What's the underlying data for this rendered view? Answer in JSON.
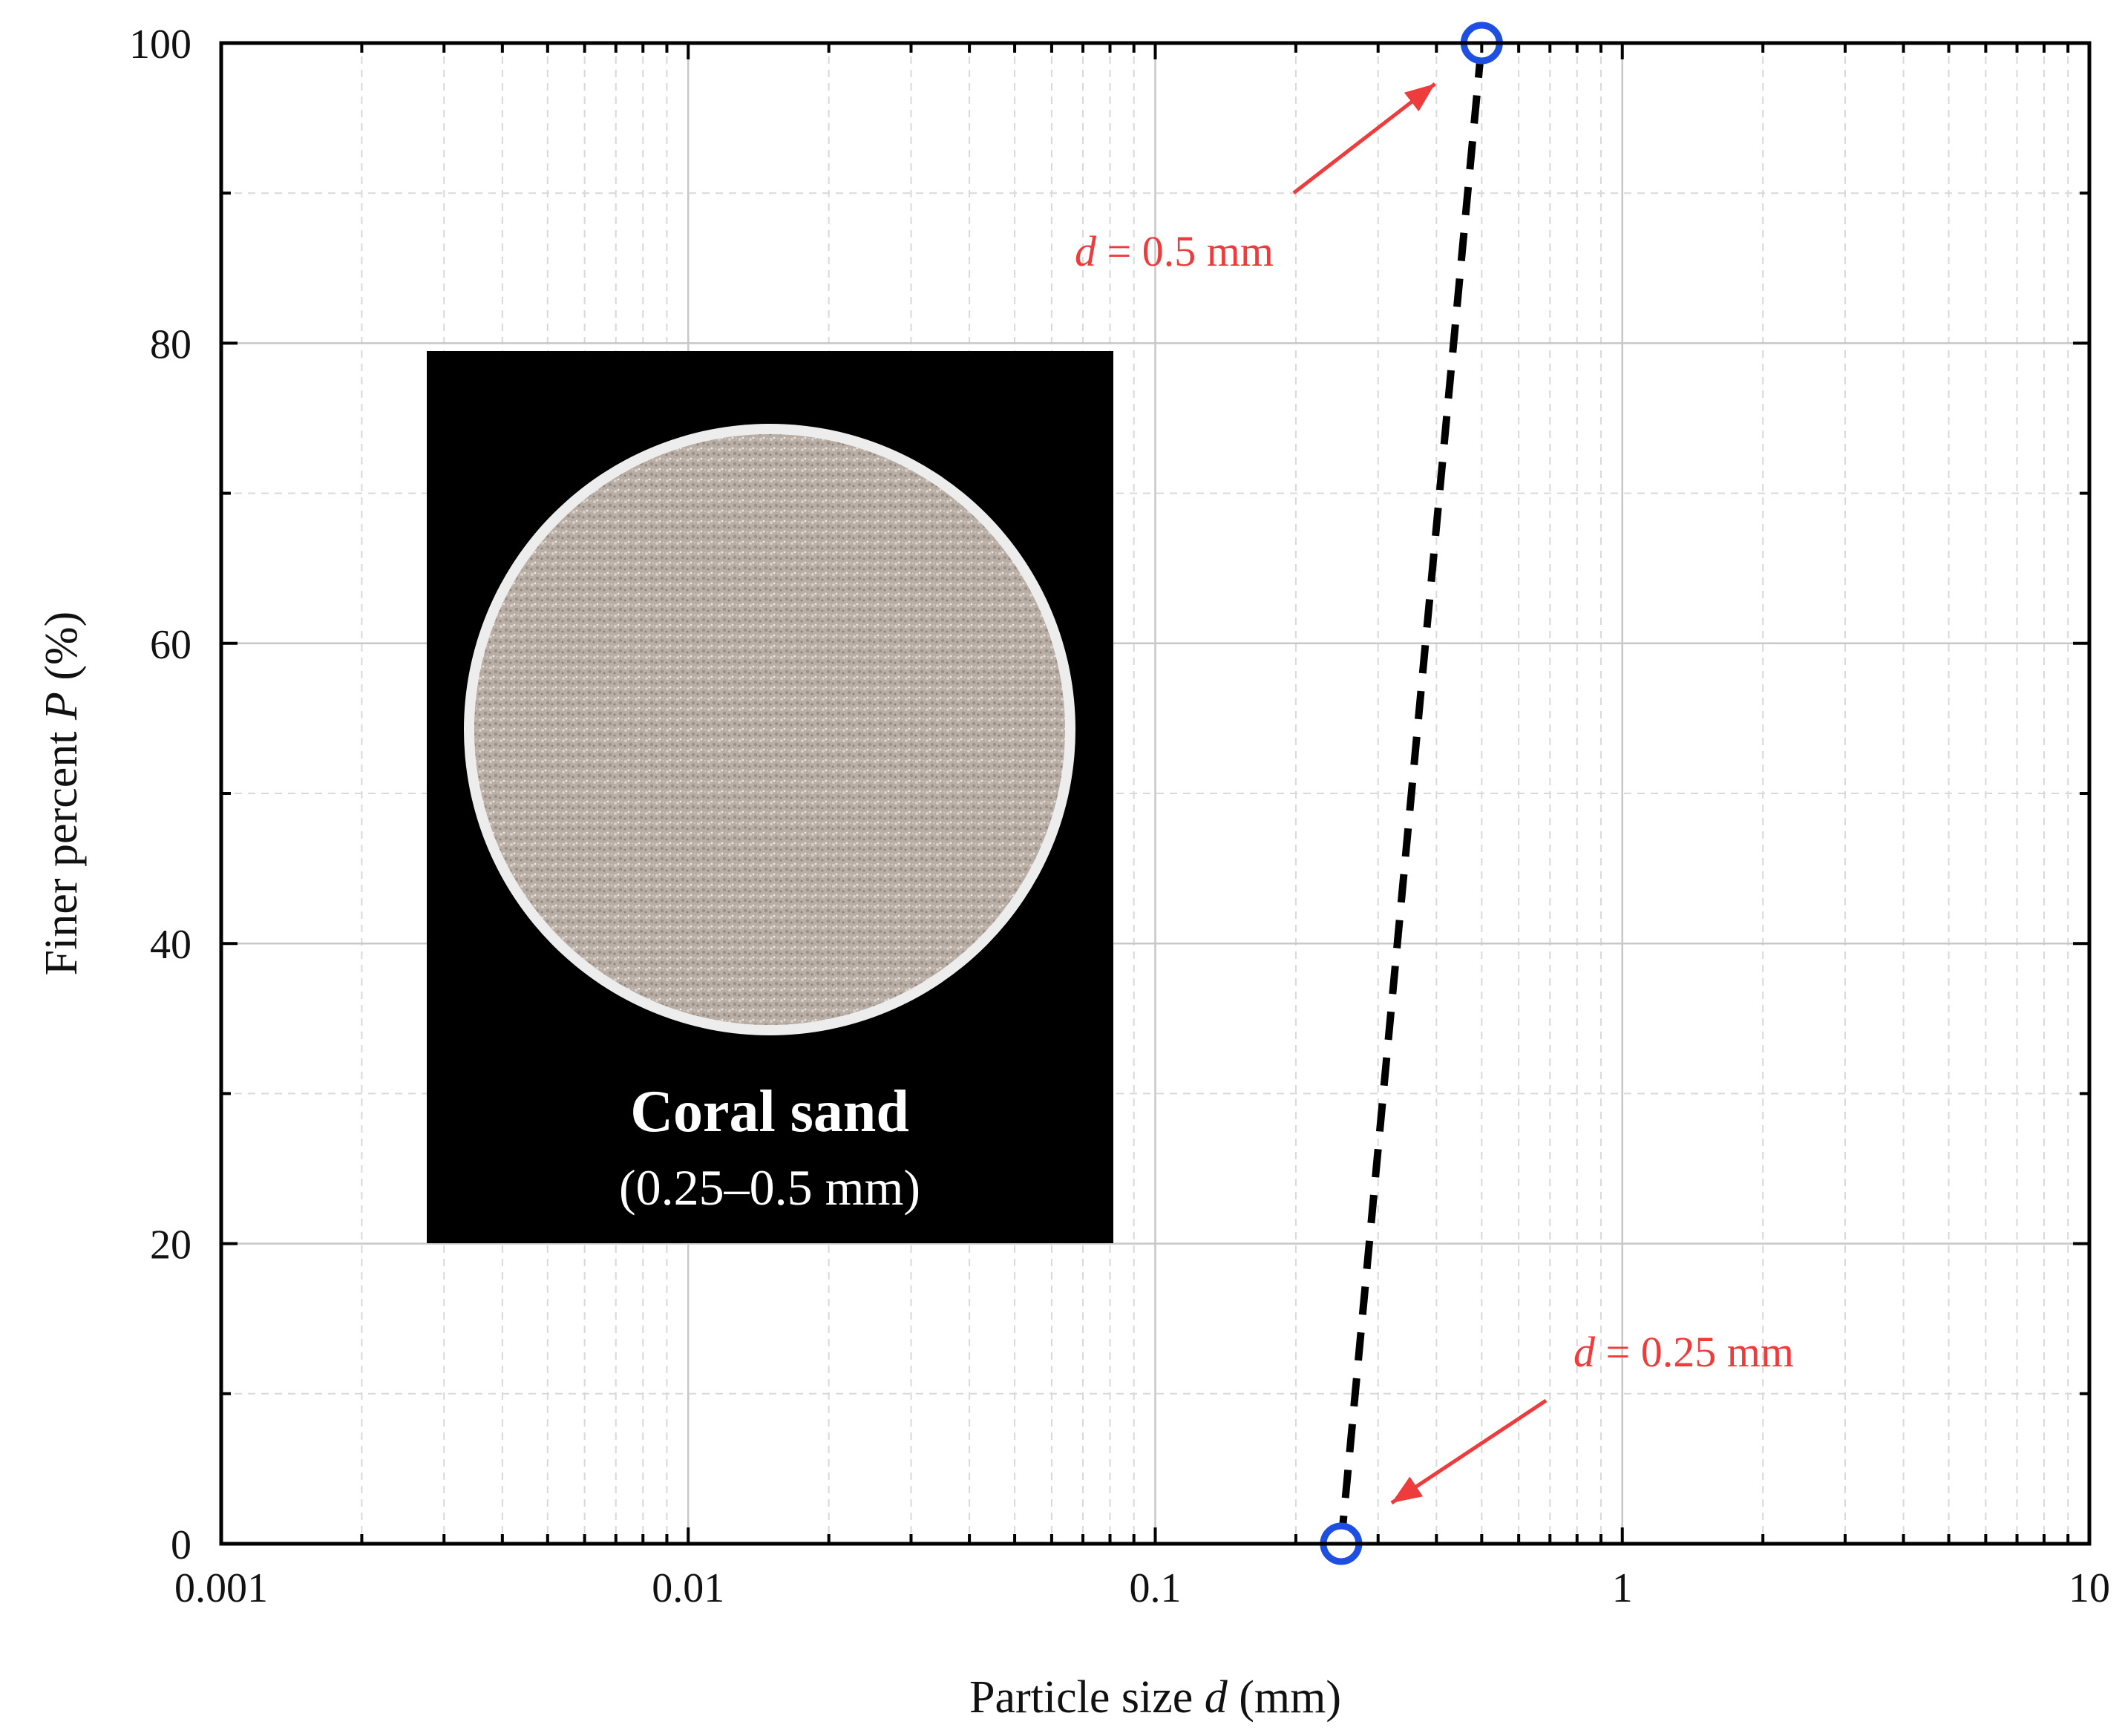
{
  "chart_data": {
    "type": "line",
    "xscale": "log",
    "xlim": [
      0.001,
      10
    ],
    "ylim": [
      0,
      100
    ],
    "xticks": [
      "0.001",
      "0.01",
      "0.1",
      "1",
      "10"
    ],
    "yticks": [
      "0",
      "20",
      "40",
      "60",
      "80",
      "100"
    ],
    "xlabel": {
      "prefix": "Particle size ",
      "var": "d",
      "suffix": " (mm)"
    },
    "ylabel": {
      "prefix": "Finer percent ",
      "var": "P",
      "suffix": " (%)"
    },
    "grid": true,
    "series": [
      {
        "x": [
          0.25,
          0.5
        ],
        "y": [
          0,
          100
        ],
        "line_style": "dashed",
        "line_color": "#000000",
        "marker": "open-circle",
        "marker_color": "#1f4fe0"
      }
    ],
    "annotations": [
      {
        "var": "d",
        "text": " = 0.5 mm",
        "x": 0.5,
        "y": 100,
        "color": "#ee3b3b"
      },
      {
        "var": "d",
        "text": " = 0.25 mm",
        "x": 0.25,
        "y": 0,
        "color": "#ee3b3b"
      }
    ]
  },
  "inset": {
    "title": "Coral sand",
    "subtitle": "(0.25–0.5 mm)"
  }
}
